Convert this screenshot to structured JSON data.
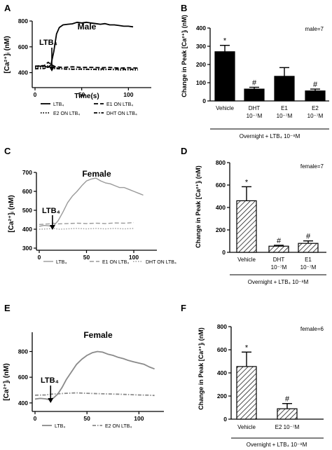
{
  "panels": {
    "A": {
      "letter": "A",
      "title": "Male",
      "ylabel": "[Ca²⁺]ᵢ (nM)",
      "xlabel": "Time(s)",
      "arrow_label": "LTB₄",
      "legend": [
        "LTB₄",
        "E1 ON LTB₄",
        "E2 ON LTB₄",
        "DHT ON LTB₄"
      ]
    },
    "B": {
      "letter": "B",
      "note": "male=7",
      "ylabel": "Change in Peak [Ca²⁺]ᵢ (nM)",
      "footer": "Overnight + LTB₄ 10⁻⁸M"
    },
    "C": {
      "letter": "C",
      "title": "Female",
      "ylabel": "[Ca²⁺]ᵢ (nM)",
      "arrow_label": "LTB₄",
      "legend": [
        "LTB₄",
        "E1 ON LTB₄",
        "DHT ON LTB₄"
      ]
    },
    "D": {
      "letter": "D",
      "note": "female=7",
      "ylabel": "Change in Peak [Ca²⁺]ᵢ (nM)",
      "footer": "Overnight + LTB₄ 10⁻⁸M"
    },
    "E": {
      "letter": "E",
      "title": "Female",
      "ylabel": "[Ca²⁺]ᵢ (nM)",
      "arrow_label": "LTB₄",
      "legend": [
        "LTB₄",
        "E2 ON LTB₄"
      ]
    },
    "F": {
      "letter": "F",
      "note": "female=6",
      "ylabel": "Change in Peak [Ca²⁺]ᵢ (nM)",
      "footer": "Overnight + LTB₄ 10⁻⁸M"
    }
  },
  "chart_data": [
    {
      "id": "A",
      "type": "line",
      "xlim": [
        0,
        120
      ],
      "ylim": [
        300,
        800
      ],
      "xticks": [
        0,
        50,
        100
      ],
      "yticks": [
        400,
        600,
        800
      ],
      "series": [
        {
          "name": "LTB₄",
          "style": "solid",
          "x": [
            0,
            10,
            14,
            17,
            20,
            23,
            26,
            30,
            35,
            40,
            45,
            50,
            55,
            60,
            65,
            70,
            75,
            80,
            85,
            90,
            95,
            100,
            105
          ],
          "y": [
            450,
            450,
            440,
            460,
            560,
            700,
            750,
            770,
            775,
            778,
            790,
            785,
            790,
            785,
            780,
            775,
            780,
            770,
            770,
            765,
            760,
            760,
            755
          ]
        },
        {
          "name": "E1 ON LTB₄",
          "style": "dashed",
          "x": [
            0,
            10,
            14,
            18,
            22,
            30,
            40,
            50,
            60,
            70,
            80,
            90,
            100,
            110
          ],
          "y": [
            450,
            455,
            480,
            460,
            445,
            440,
            445,
            440,
            440,
            438,
            440,
            435,
            438,
            435
          ]
        },
        {
          "name": "E2 ON LTB₄",
          "style": "dotted",
          "x": [
            0,
            10,
            15,
            20,
            30,
            40,
            50,
            60,
            70,
            80,
            90,
            100,
            110
          ],
          "y": [
            440,
            445,
            455,
            440,
            430,
            428,
            425,
            425,
            422,
            425,
            420,
            422,
            420
          ]
        },
        {
          "name": "DHT ON LTB₄",
          "style": "dashdot",
          "x": [
            0,
            10,
            15,
            20,
            30,
            40,
            50,
            60,
            70,
            80,
            90,
            100,
            110
          ],
          "y": [
            430,
            432,
            445,
            432,
            428,
            425,
            428,
            425,
            428,
            425,
            428,
            425,
            428
          ]
        }
      ]
    },
    {
      "id": "B",
      "type": "bar",
      "ylim": [
        0,
        400
      ],
      "yticks": [
        0,
        100,
        200,
        300,
        400
      ],
      "categories": [
        "Vehicle",
        "DHT 10⁻⁷M",
        "E1 10⁻⁷M",
        "E2 10⁻⁷M"
      ],
      "values": [
        270,
        65,
        135,
        55
      ],
      "errors": [
        35,
        10,
        48,
        10
      ],
      "annotations": [
        "*",
        "#",
        "",
        "#"
      ],
      "fill": "solid"
    },
    {
      "id": "C",
      "type": "line",
      "xlim": [
        0,
        120
      ],
      "ylim": [
        300,
        700
      ],
      "xticks": [
        0,
        50,
        100
      ],
      "yticks": [
        300,
        400,
        500,
        600,
        700
      ],
      "series": [
        {
          "name": "LTB₄",
          "style": "solid",
          "x": [
            0,
            5,
            10,
            14,
            17,
            20,
            25,
            30,
            35,
            40,
            45,
            50,
            55,
            60,
            65,
            70,
            75,
            80,
            85,
            90,
            95,
            100,
            105,
            110
          ],
          "y": [
            415,
            420,
            418,
            412,
            428,
            445,
            490,
            540,
            575,
            600,
            630,
            655,
            665,
            670,
            655,
            645,
            640,
            630,
            620,
            620,
            610,
            600,
            590,
            580
          ]
        },
        {
          "name": "E1 ON LTB₄",
          "style": "dashed",
          "x": [
            0,
            10,
            15,
            20,
            30,
            40,
            50,
            60,
            70,
            80,
            90,
            100
          ],
          "y": [
            425,
            428,
            432,
            428,
            430,
            432,
            430,
            432,
            430,
            433,
            432,
            435
          ]
        },
        {
          "name": "DHT ON LTB₄",
          "style": "dotted",
          "x": [
            0,
            10,
            15,
            20,
            30,
            40,
            50,
            60,
            70,
            80,
            90,
            100
          ],
          "y": [
            400,
            402,
            405,
            400,
            402,
            404,
            402,
            404,
            402,
            404,
            402,
            404
          ]
        }
      ]
    },
    {
      "id": "D",
      "type": "bar",
      "ylim": [
        0,
        800
      ],
      "yticks": [
        0,
        200,
        400,
        600,
        800
      ],
      "categories": [
        "Vehicle",
        "DHT 10⁻⁷M",
        "E1 10⁻⁷M"
      ],
      "values": [
        460,
        55,
        80
      ],
      "errors": [
        125,
        8,
        22
      ],
      "annotations": [
        "*",
        "#",
        "#"
      ],
      "fill": "hatched"
    },
    {
      "id": "E",
      "type": "line",
      "xlim": [
        0,
        120
      ],
      "ylim": [
        350,
        950
      ],
      "xticks": [
        0,
        50,
        100
      ],
      "yticks": [
        400,
        600,
        800
      ],
      "series": [
        {
          "name": "LTB₄",
          "style": "solid",
          "x": [
            0,
            5,
            10,
            14,
            18,
            22,
            26,
            30,
            35,
            40,
            45,
            50,
            55,
            60,
            65,
            70,
            75,
            80,
            85,
            90,
            95,
            100,
            105,
            110,
            115
          ],
          "y": [
            430,
            435,
            432,
            425,
            440,
            470,
            520,
            580,
            640,
            700,
            740,
            770,
            790,
            800,
            795,
            780,
            770,
            755,
            745,
            730,
            720,
            710,
            700,
            680,
            665
          ]
        },
        {
          "name": "E2 ON LTB₄",
          "style": "dashdot",
          "x": [
            0,
            10,
            15,
            20,
            30,
            40,
            50,
            60,
            70,
            80,
            90,
            100,
            110,
            115
          ],
          "y": [
            460,
            462,
            468,
            470,
            475,
            478,
            475,
            472,
            470,
            468,
            465,
            462,
            460,
            458
          ]
        }
      ]
    },
    {
      "id": "F",
      "type": "bar",
      "ylim": [
        0,
        800
      ],
      "yticks": [
        0,
        200,
        400,
        600,
        800
      ],
      "categories": [
        "Vehicle",
        "E2 10⁻⁷M"
      ],
      "values": [
        455,
        90
      ],
      "errors": [
        125,
        45
      ],
      "annotations": [
        "*",
        "#"
      ],
      "fill": "hatched"
    }
  ]
}
